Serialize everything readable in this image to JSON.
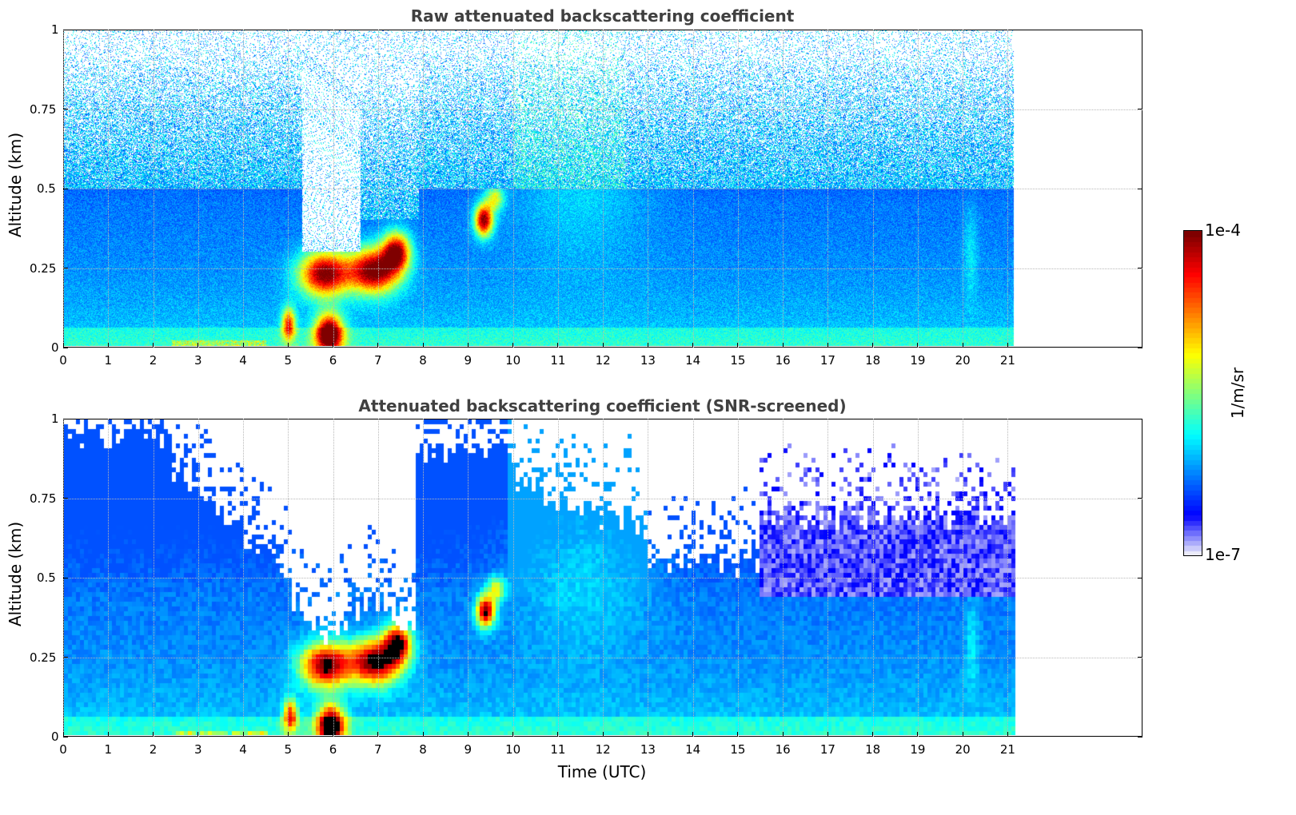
{
  "chart_data": [
    {
      "type": "heatmap",
      "title": "Raw attenuated backscattering coefficient",
      "xlabel": "",
      "ylabel": "Altitude (km)",
      "xlim": [
        0,
        24
      ],
      "ylim": [
        0,
        1
      ],
      "data_extent_x": [
        0,
        21.15
      ],
      "x_ticks": [
        "0",
        "1",
        "2",
        "3",
        "4",
        "5",
        "6",
        "7",
        "8",
        "9",
        "10",
        "11",
        "12",
        "13",
        "14",
        "15",
        "16",
        "17",
        "18",
        "19",
        "20",
        "21"
      ],
      "y_ticks": [
        "0",
        "0.25",
        "0.5",
        "0.75",
        "1"
      ],
      "grid": true,
      "features": [
        {
          "name": "boundary layer aerosol",
          "x_range": [
            0,
            21.15
          ],
          "alt_range": [
            0,
            0.45
          ],
          "level": "medium"
        },
        {
          "name": "low cloud",
          "x_range": [
            5.0,
            7.9
          ],
          "alt_range": [
            0.15,
            0.38
          ],
          "level": "high"
        },
        {
          "name": "near-surface cloud",
          "x_range": [
            5.5,
            6.5
          ],
          "alt_range": [
            0,
            0.1
          ],
          "level": "high"
        },
        {
          "name": "elevated layer",
          "x_range": [
            9.1,
            9.9
          ],
          "alt_range": [
            0.35,
            0.5
          ],
          "level": "high"
        }
      ]
    },
    {
      "type": "heatmap",
      "title": "Attenuated backscattering coefficient (SNR-screened)",
      "xlabel": "Time (UTC)",
      "ylabel": "Altitude (km)",
      "xlim": [
        0,
        24
      ],
      "ylim": [
        0,
        1
      ],
      "data_extent_x": [
        0,
        21.15
      ],
      "x_ticks": [
        "0",
        "1",
        "2",
        "3",
        "4",
        "5",
        "6",
        "7",
        "8",
        "9",
        "10",
        "11",
        "12",
        "13",
        "14",
        "15",
        "16",
        "17",
        "18",
        "19",
        "20",
        "21"
      ],
      "y_ticks": [
        "0",
        "0.25",
        "0.5",
        "0.75",
        "1"
      ],
      "grid": true
    }
  ],
  "colorbar": {
    "label": "1/m/sr",
    "max_label": "1e-4",
    "min_label": "1e-7",
    "colormap": "jet",
    "scale": "log"
  }
}
